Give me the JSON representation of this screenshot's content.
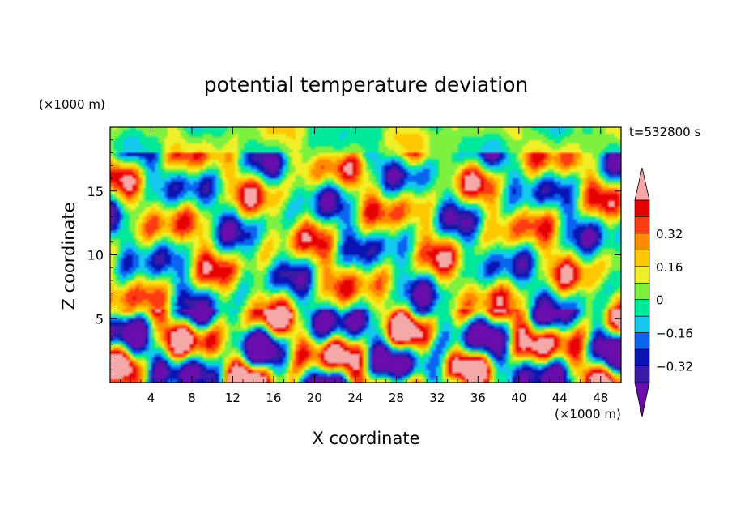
{
  "chart_data": {
    "type": "heatmap",
    "title": "potential temperature deviation",
    "xlabel": "X coordinate",
    "ylabel": "Z coordinate",
    "x_unit": "(×1000 m)",
    "y_unit": "(×1000 m)",
    "time_label": "t=532800 s",
    "xlim": [
      0,
      50
    ],
    "ylim": [
      0,
      20
    ],
    "x_ticks": [
      4,
      8,
      12,
      16,
      20,
      24,
      28,
      32,
      36,
      40,
      44,
      48
    ],
    "y_ticks": [
      5,
      10,
      15
    ],
    "colorbar": {
      "levels": [
        -0.48,
        -0.4,
        -0.32,
        -0.24,
        -0.16,
        -0.08,
        0,
        0.08,
        0.16,
        0.24,
        0.32,
        0.4,
        0.48
      ],
      "tick_labels": [
        "0.32",
        "0.16",
        "0",
        "−0.16",
        "−0.32"
      ],
      "tick_values": [
        0.32,
        0.16,
        0,
        -0.16,
        -0.32
      ],
      "colors": [
        "#6a0dad",
        "#3a1aa6",
        "#0a14b4",
        "#0a64f0",
        "#14c8f0",
        "#00e89a",
        "#7ef040",
        "#f0f028",
        "#ffc800",
        "#ff8c00",
        "#ff3c14",
        "#e60000",
        "#f5a8a8"
      ],
      "under_color": "#6a0dad",
      "over_color": "#f5a8a8"
    }
  }
}
